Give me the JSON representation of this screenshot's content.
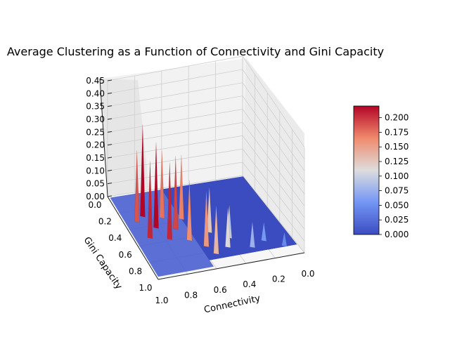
{
  "chart_data": {
    "type": "surface3d",
    "title": "Average Clustering as a Function of Connectivity and Gini Capacity",
    "xlabel": "Connectivity",
    "ylabel": "Gini Capacity",
    "zlabel": "",
    "xlim": [
      0.0,
      1.0
    ],
    "ylim": [
      0.0,
      1.0
    ],
    "zlim": [
      0.0,
      0.45
    ],
    "x_ticks": [
      "1.0",
      "0.8",
      "0.6",
      "0.4",
      "0.2",
      "0.0"
    ],
    "y_ticks": [
      "0.0",
      "0.2",
      "0.4",
      "0.6",
      "0.8",
      "1.0"
    ],
    "z_ticks": [
      "0.00",
      "0.05",
      "0.10",
      "0.15",
      "0.20",
      "0.25",
      "0.30",
      "0.35",
      "0.40",
      "0.45"
    ],
    "colormap": "coolwarm",
    "colorbar_range": [
      0.0,
      0.22
    ],
    "colorbar_ticks": [
      "0.000",
      "0.025",
      "0.050",
      "0.075",
      "0.100",
      "0.125",
      "0.150",
      "0.175",
      "0.200"
    ],
    "grid": true,
    "spikes": [
      {
        "connectivity": 0.92,
        "gini": 0.35,
        "z": 0.3
      },
      {
        "connectivity": 0.9,
        "gini": 0.55,
        "z": 0.33
      },
      {
        "connectivity": 0.86,
        "gini": 0.3,
        "z": 0.38
      },
      {
        "connectivity": 0.82,
        "gini": 0.45,
        "z": 0.36
      },
      {
        "connectivity": 0.78,
        "gini": 0.6,
        "z": 0.33
      },
      {
        "connectivity": 0.74,
        "gini": 0.35,
        "z": 0.28
      },
      {
        "connectivity": 0.7,
        "gini": 0.5,
        "z": 0.31
      },
      {
        "connectivity": 0.66,
        "gini": 0.65,
        "z": 0.26
      },
      {
        "connectivity": 0.62,
        "gini": 0.4,
        "z": 0.27
      },
      {
        "connectivity": 0.58,
        "gini": 0.75,
        "z": 0.25
      },
      {
        "connectivity": 0.55,
        "gini": 0.85,
        "z": 0.22
      },
      {
        "connectivity": 0.5,
        "gini": 0.6,
        "z": 0.2
      },
      {
        "connectivity": 0.45,
        "gini": 0.8,
        "z": 0.18
      },
      {
        "connectivity": 0.4,
        "gini": 0.7,
        "z": 0.15
      },
      {
        "connectivity": 0.3,
        "gini": 0.85,
        "z": 0.12
      },
      {
        "connectivity": 0.2,
        "gini": 0.8,
        "z": 0.09
      },
      {
        "connectivity": 0.1,
        "gini": 0.9,
        "z": 0.07
      }
    ]
  }
}
